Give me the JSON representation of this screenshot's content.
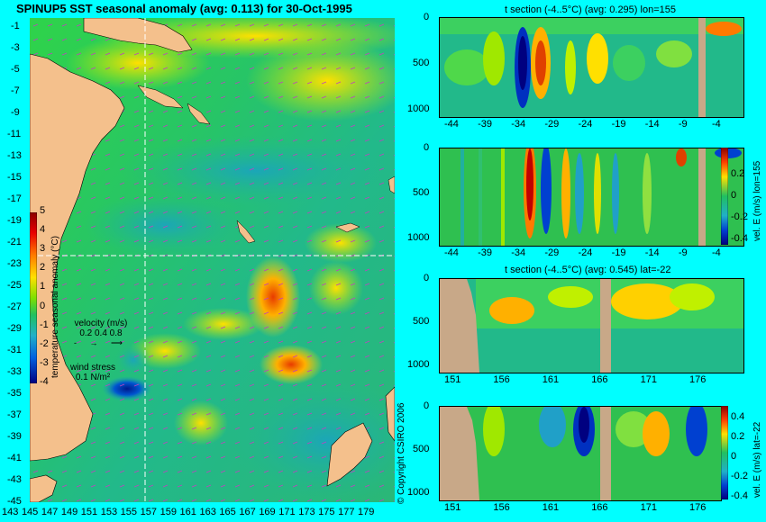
{
  "main_map": {
    "title": "SPINUP5 SST seasonal anomaly (avg: 0.113) for 30-Oct-1995",
    "lat_ticks": [
      "-1",
      "-3",
      "-5",
      "-7",
      "-9",
      "-11",
      "-13",
      "-15",
      "-17",
      "-19",
      "-21",
      "-23",
      "-25",
      "-27",
      "-29",
      "-31",
      "-33",
      "-35",
      "-37",
      "-39",
      "-41",
      "-43",
      "-45"
    ],
    "lon_ticks": [
      "143",
      "145",
      "147",
      "149",
      "151",
      "153",
      "155",
      "157",
      "159",
      "161",
      "163",
      "165",
      "167",
      "169",
      "171",
      "173",
      "175",
      "177",
      "179"
    ],
    "colorbar": {
      "label": "temperature seasonal anomaly (°C)",
      "ticks": [
        "5",
        "4",
        "3",
        "2",
        "1",
        "0",
        "-1",
        "-2",
        "-3",
        "-4"
      ]
    },
    "velocity_legend": {
      "title": "velocity (m/s)",
      "values": "0.2 0.4 0.8"
    },
    "wind_legend": {
      "title": "wind stress",
      "value": "0.1 N/m²"
    },
    "crosshair": {
      "lon": 155,
      "lat": -22
    }
  },
  "copyright": "© Copyright CSIRO 2006",
  "panels": [
    {
      "id": "t-section-lon",
      "title": "t section (-4..5°C) (avg: 0.295) lon=155",
      "x_ticks": [
        "-44",
        "-39",
        "-34",
        "-29",
        "-24",
        "-19",
        "-14",
        "-9",
        "-4"
      ],
      "y_ticks": [
        "0",
        "500",
        "1000"
      ]
    },
    {
      "id": "vel-section-lon",
      "title": "",
      "x_ticks": [
        "-44",
        "-39",
        "-34",
        "-29",
        "-24",
        "-19",
        "-14",
        "-9",
        "-4"
      ],
      "y_ticks": [
        "0",
        "500",
        "1000"
      ],
      "colorbar": {
        "label": "vel. E (m/s) lon=155",
        "ticks": [
          "0.2",
          "0",
          "-0.2",
          "-0.4"
        ]
      }
    },
    {
      "id": "t-section-lat",
      "title": "t section (-4..5°C) (avg: 0.545) lat=-22",
      "x_ticks": [
        "151",
        "156",
        "161",
        "166",
        "171",
        "176"
      ],
      "y_ticks": [
        "0",
        "500",
        "1000"
      ]
    },
    {
      "id": "vel-section-lat",
      "title": "",
      "x_ticks": [
        "151",
        "156",
        "161",
        "166",
        "171",
        "176"
      ],
      "y_ticks": [
        "0",
        "500",
        "1000"
      ],
      "colorbar": {
        "label": "vel. E (m/s) lat=-22",
        "ticks": [
          "0.4",
          "0.2",
          "0",
          "-0.2",
          "-0.4"
        ]
      }
    }
  ]
}
